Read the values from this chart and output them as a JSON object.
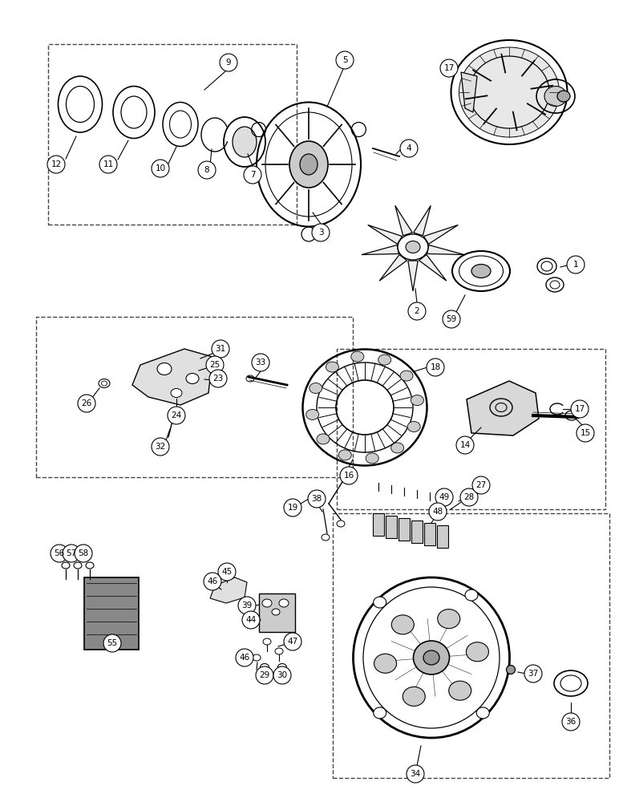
{
  "background_color": "#ffffff",
  "line_color": "#000000",
  "figsize": [
    7.72,
    10.0
  ],
  "dpi": 100,
  "lw": 0.8
}
